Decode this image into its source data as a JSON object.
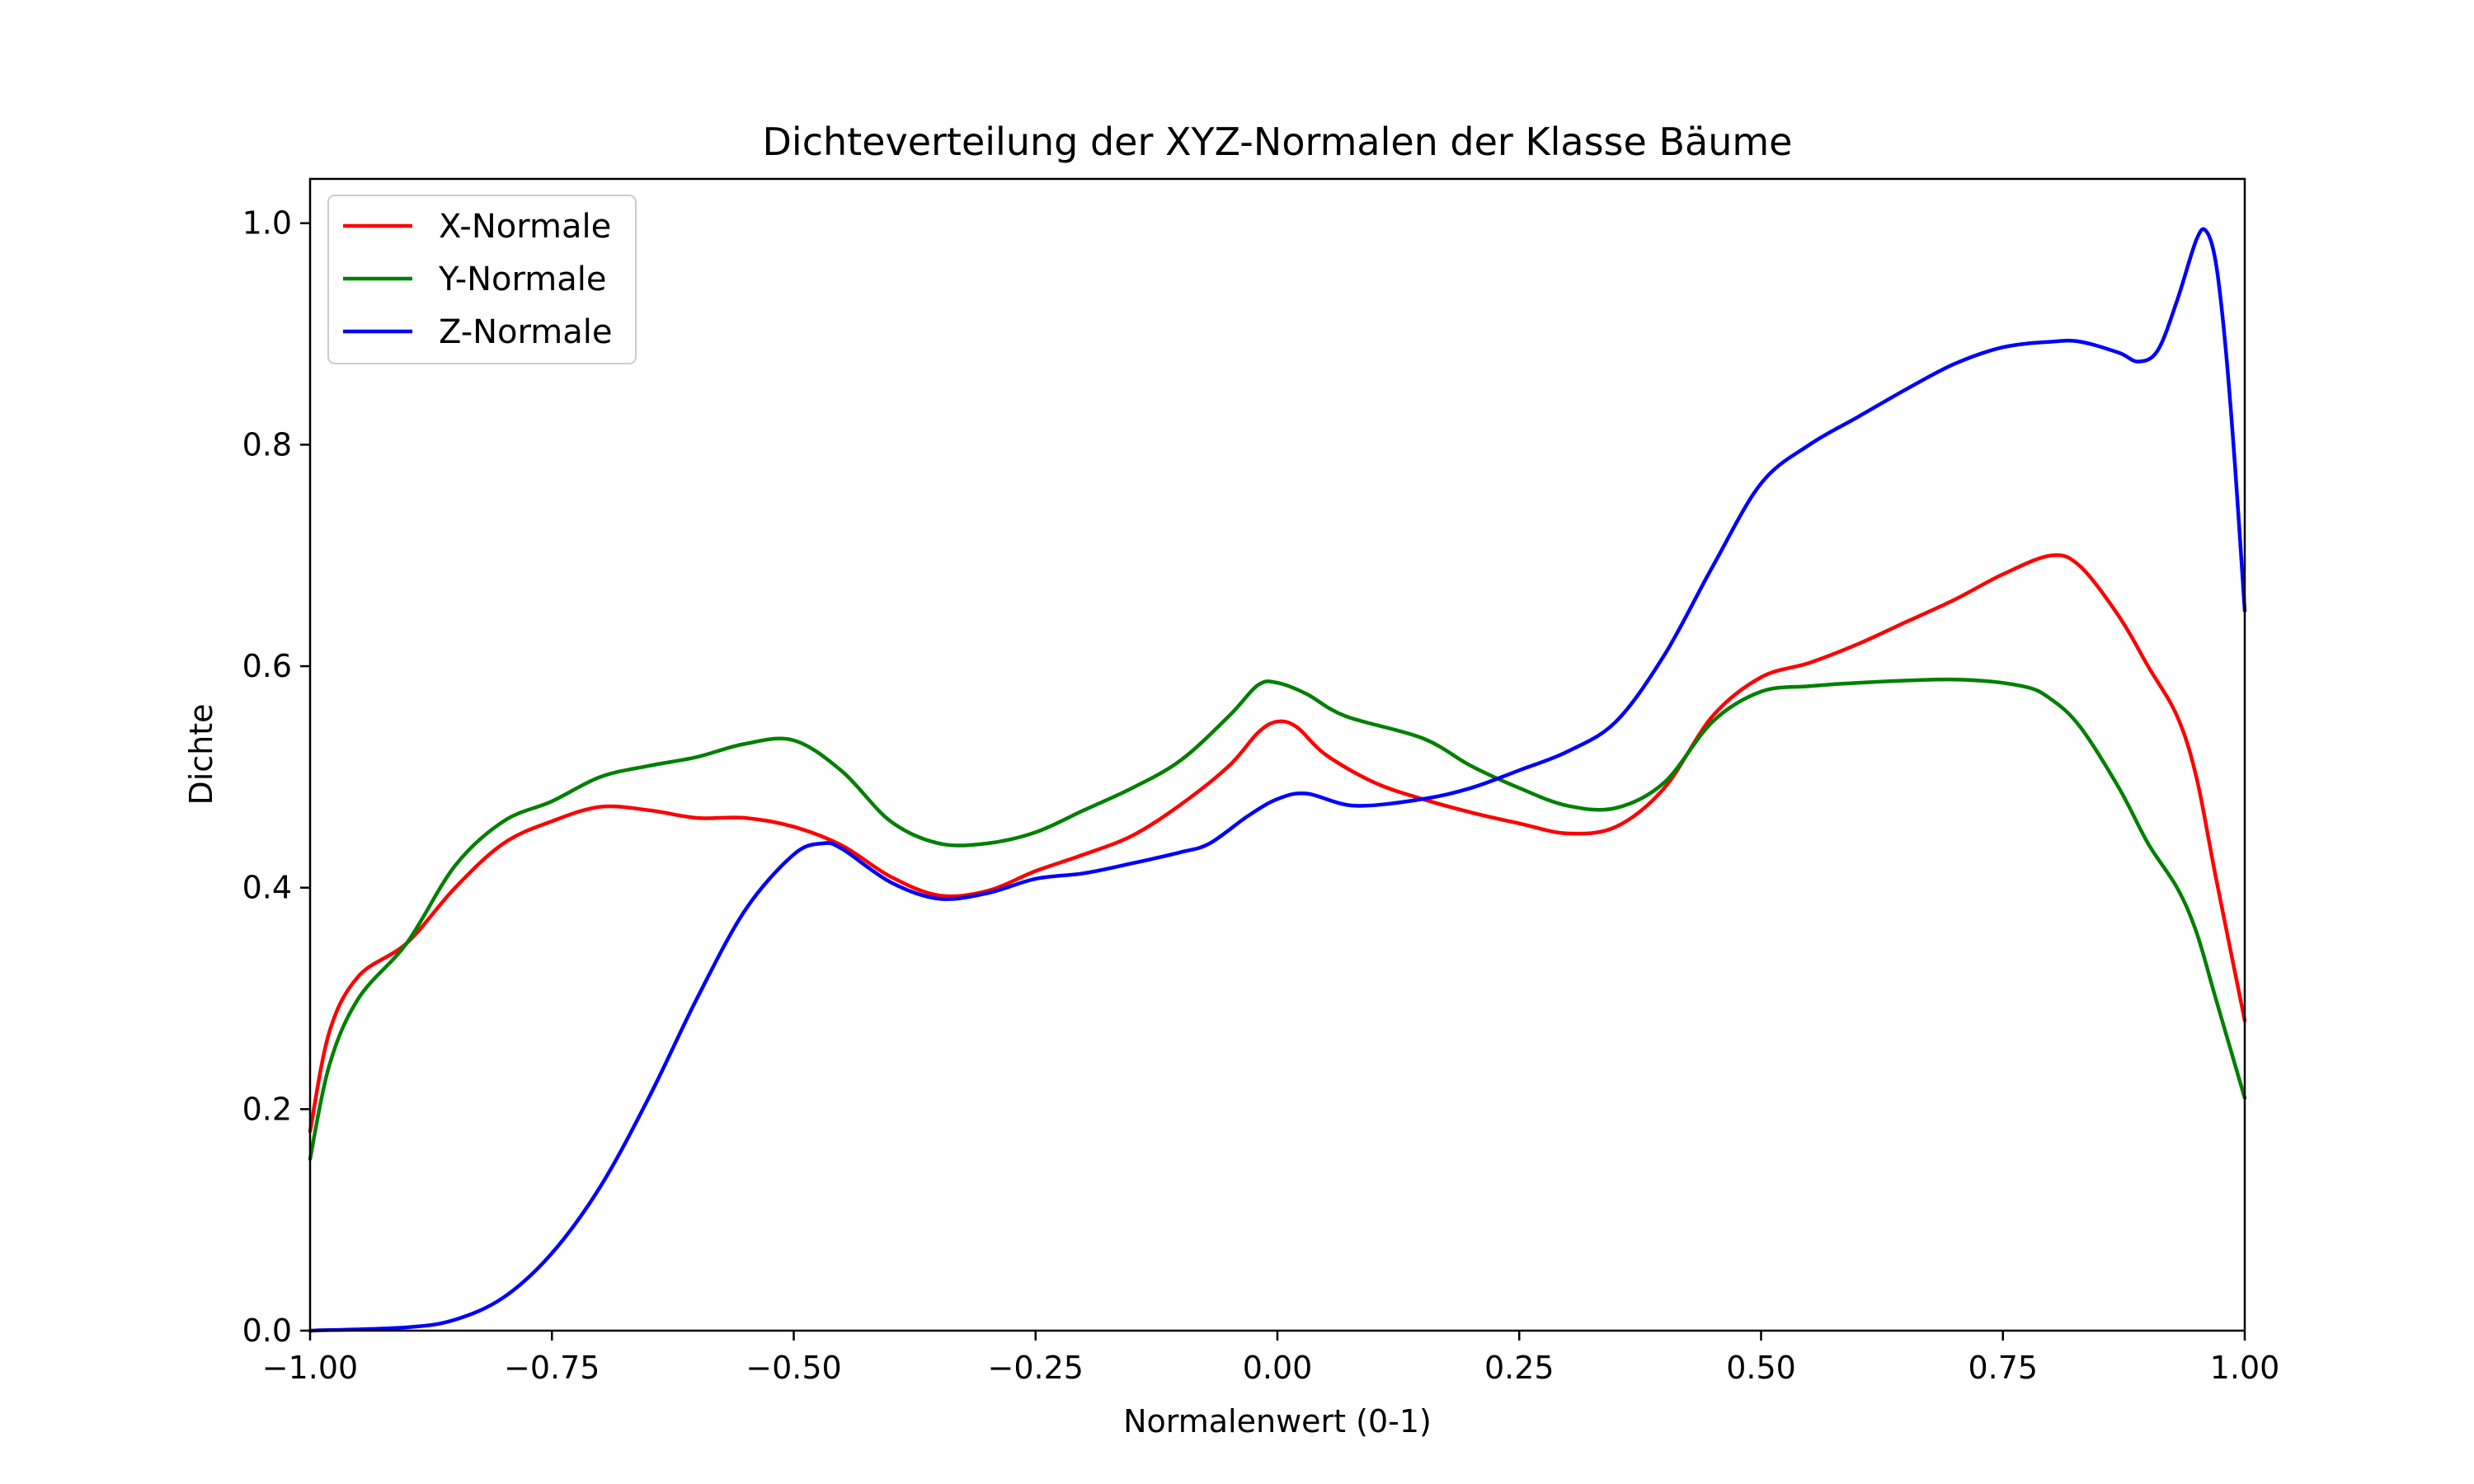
{
  "chart_data": {
    "type": "line",
    "title": "Dichteverteilung der XYZ-Normalen der Klasse Bäume",
    "xlabel": "Normalenwert (0-1)",
    "ylabel": "Dichte",
    "xlim": [
      -1.0,
      1.0
    ],
    "ylim": [
      0.0,
      1.04
    ],
    "x_ticks": [
      -1.0,
      -0.75,
      -0.5,
      -0.25,
      0.0,
      0.25,
      0.5,
      0.75,
      1.0
    ],
    "x_tick_labels": [
      "−1.00",
      "−0.75",
      "−0.50",
      "−0.25",
      "0.00",
      "0.25",
      "0.50",
      "0.75",
      "1.00"
    ],
    "y_ticks": [
      0.0,
      0.2,
      0.4,
      0.6,
      0.8,
      1.0
    ],
    "y_tick_labels": [
      "0.0",
      "0.2",
      "0.4",
      "0.6",
      "0.8",
      "1.0"
    ],
    "grid": false,
    "legend_position": "top-left",
    "series": [
      {
        "name": "X-Normale",
        "color": "#ff0000",
        "points": [
          [
            -1.0,
            0.18
          ],
          [
            -0.98,
            0.27
          ],
          [
            -0.95,
            0.32
          ],
          [
            -0.9,
            0.35
          ],
          [
            -0.85,
            0.4
          ],
          [
            -0.8,
            0.44
          ],
          [
            -0.75,
            0.46
          ],
          [
            -0.7,
            0.473
          ],
          [
            -0.65,
            0.47
          ],
          [
            -0.6,
            0.463
          ],
          [
            -0.55,
            0.463
          ],
          [
            -0.5,
            0.455
          ],
          [
            -0.45,
            0.438
          ],
          [
            -0.4,
            0.41
          ],
          [
            -0.35,
            0.393
          ],
          [
            -0.3,
            0.397
          ],
          [
            -0.25,
            0.415
          ],
          [
            -0.2,
            0.43
          ],
          [
            -0.15,
            0.447
          ],
          [
            -0.1,
            0.475
          ],
          [
            -0.05,
            0.51
          ],
          [
            -0.02,
            0.54
          ],
          [
            0.0,
            0.55
          ],
          [
            0.02,
            0.545
          ],
          [
            0.05,
            0.52
          ],
          [
            0.1,
            0.495
          ],
          [
            0.15,
            0.48
          ],
          [
            0.2,
            0.468
          ],
          [
            0.25,
            0.458
          ],
          [
            0.3,
            0.449
          ],
          [
            0.35,
            0.455
          ],
          [
            0.4,
            0.49
          ],
          [
            0.45,
            0.555
          ],
          [
            0.5,
            0.59
          ],
          [
            0.55,
            0.603
          ],
          [
            0.6,
            0.62
          ],
          [
            0.65,
            0.64
          ],
          [
            0.7,
            0.66
          ],
          [
            0.75,
            0.683
          ],
          [
            0.8,
            0.7
          ],
          [
            0.83,
            0.69
          ],
          [
            0.87,
            0.645
          ],
          [
            0.9,
            0.6
          ],
          [
            0.93,
            0.555
          ],
          [
            0.95,
            0.5
          ],
          [
            0.97,
            0.41
          ],
          [
            1.0,
            0.28
          ]
        ]
      },
      {
        "name": "Y-Normale",
        "color": "#008000",
        "points": [
          [
            -1.0,
            0.155
          ],
          [
            -0.98,
            0.24
          ],
          [
            -0.95,
            0.3
          ],
          [
            -0.9,
            0.35
          ],
          [
            -0.85,
            0.42
          ],
          [
            -0.8,
            0.46
          ],
          [
            -0.75,
            0.478
          ],
          [
            -0.7,
            0.5
          ],
          [
            -0.65,
            0.51
          ],
          [
            -0.6,
            0.518
          ],
          [
            -0.55,
            0.53
          ],
          [
            -0.5,
            0.533
          ],
          [
            -0.45,
            0.505
          ],
          [
            -0.4,
            0.46
          ],
          [
            -0.35,
            0.44
          ],
          [
            -0.3,
            0.44
          ],
          [
            -0.25,
            0.45
          ],
          [
            -0.2,
            0.47
          ],
          [
            -0.15,
            0.49
          ],
          [
            -0.1,
            0.515
          ],
          [
            -0.05,
            0.555
          ],
          [
            -0.02,
            0.583
          ],
          [
            0.0,
            0.585
          ],
          [
            0.03,
            0.575
          ],
          [
            0.07,
            0.555
          ],
          [
            0.15,
            0.535
          ],
          [
            0.2,
            0.51
          ],
          [
            0.25,
            0.49
          ],
          [
            0.3,
            0.474
          ],
          [
            0.35,
            0.472
          ],
          [
            0.4,
            0.495
          ],
          [
            0.45,
            0.55
          ],
          [
            0.5,
            0.577
          ],
          [
            0.55,
            0.582
          ],
          [
            0.6,
            0.585
          ],
          [
            0.7,
            0.588
          ],
          [
            0.77,
            0.582
          ],
          [
            0.8,
            0.57
          ],
          [
            0.83,
            0.545
          ],
          [
            0.87,
            0.49
          ],
          [
            0.9,
            0.44
          ],
          [
            0.93,
            0.4
          ],
          [
            0.95,
            0.36
          ],
          [
            0.97,
            0.3
          ],
          [
            1.0,
            0.21
          ]
        ]
      },
      {
        "name": "Z-Normale",
        "color": "#0000ff",
        "points": [
          [
            -1.0,
            0.0
          ],
          [
            -0.9,
            0.003
          ],
          [
            -0.85,
            0.01
          ],
          [
            -0.8,
            0.03
          ],
          [
            -0.75,
            0.07
          ],
          [
            -0.7,
            0.13
          ],
          [
            -0.65,
            0.21
          ],
          [
            -0.6,
            0.3
          ],
          [
            -0.55,
            0.38
          ],
          [
            -0.5,
            0.43
          ],
          [
            -0.47,
            0.44
          ],
          [
            -0.45,
            0.435
          ],
          [
            -0.4,
            0.405
          ],
          [
            -0.35,
            0.39
          ],
          [
            -0.3,
            0.395
          ],
          [
            -0.25,
            0.408
          ],
          [
            -0.2,
            0.413
          ],
          [
            -0.15,
            0.422
          ],
          [
            -0.1,
            0.432
          ],
          [
            -0.07,
            0.44
          ],
          [
            -0.03,
            0.465
          ],
          [
            0.0,
            0.48
          ],
          [
            0.03,
            0.485
          ],
          [
            0.08,
            0.474
          ],
          [
            0.15,
            0.48
          ],
          [
            0.2,
            0.49
          ],
          [
            0.25,
            0.506
          ],
          [
            0.3,
            0.523
          ],
          [
            0.35,
            0.55
          ],
          [
            0.4,
            0.61
          ],
          [
            0.45,
            0.69
          ],
          [
            0.5,
            0.765
          ],
          [
            0.55,
            0.8
          ],
          [
            0.6,
            0.825
          ],
          [
            0.65,
            0.85
          ],
          [
            0.7,
            0.873
          ],
          [
            0.75,
            0.888
          ],
          [
            0.8,
            0.893
          ],
          [
            0.83,
            0.893
          ],
          [
            0.87,
            0.883
          ],
          [
            0.89,
            0.875
          ],
          [
            0.91,
            0.885
          ],
          [
            0.93,
            0.93
          ],
          [
            0.95,
            0.985
          ],
          [
            0.96,
            0.993
          ],
          [
            0.97,
            0.965
          ],
          [
            0.98,
            0.89
          ],
          [
            0.99,
            0.78
          ],
          [
            1.0,
            0.65
          ]
        ]
      }
    ]
  }
}
